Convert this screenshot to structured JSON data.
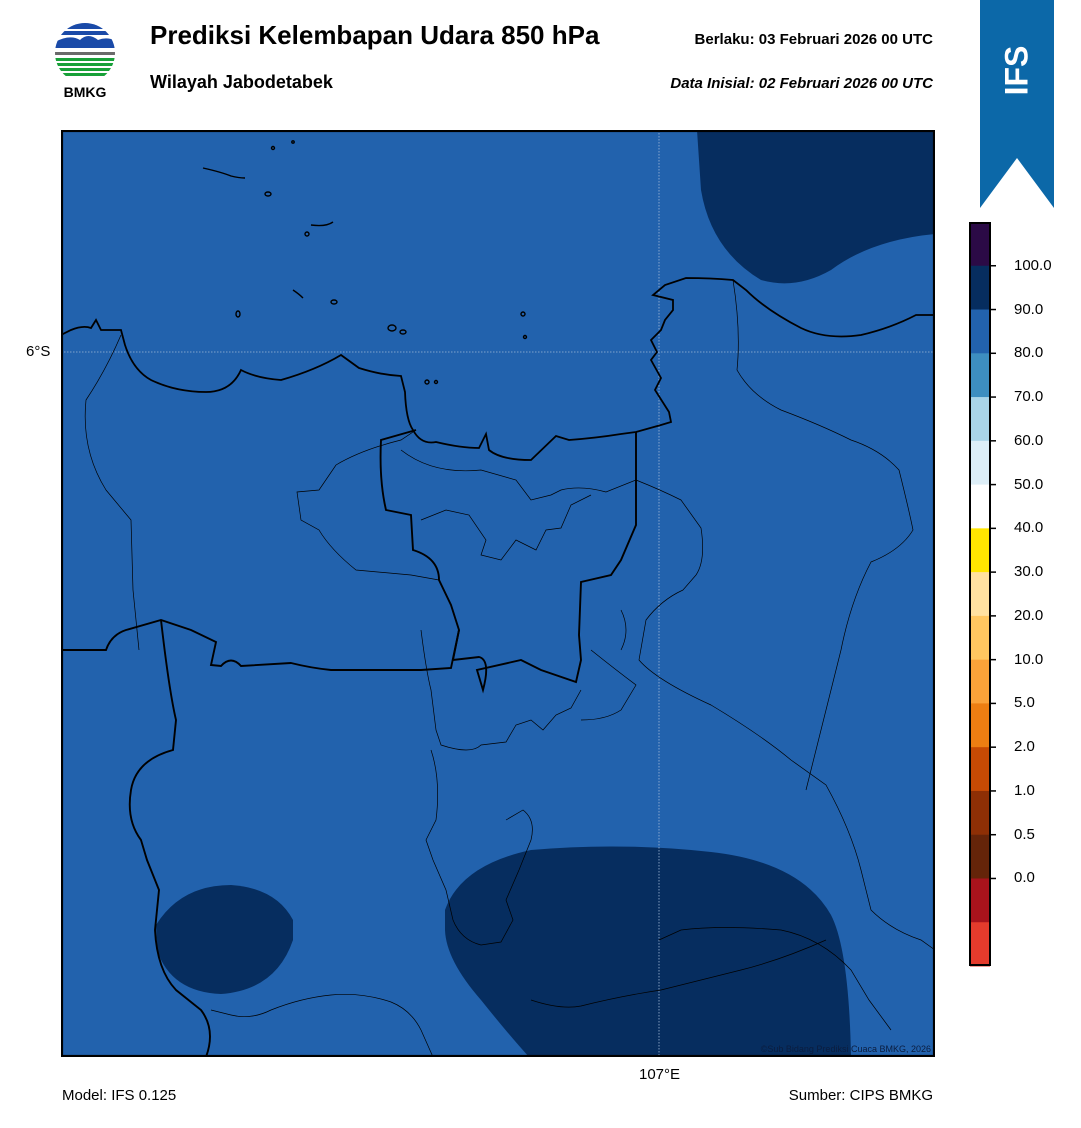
{
  "header": {
    "title": "Prediksi Kelembapan Udara 850 hPa",
    "subtitle": "Wilayah Jabodetabek",
    "valid": "Berlaku:  03 Februari 2026 00 UTC",
    "initial": "Data Inisial:  02 Februari 2026 00 UTC"
  },
  "logo": {
    "text": "BMKG"
  },
  "ribbon": {
    "text": "IFS",
    "color": "#0c68a8"
  },
  "map": {
    "lat_label": "6°S",
    "lon_label": "107°E",
    "credit": "©Sub Bidang Prediksi Cuaca BMKG, 2026",
    "background_color": "#2262ad",
    "high_humidity_color": "#062d5f"
  },
  "footer": {
    "model": "Model: IFS 0.125",
    "source": "Sumber: CIPS BMKG"
  },
  "colorbar": {
    "ticks": [
      "100.0",
      "90.0",
      "80.0",
      "70.0",
      "60.0",
      "50.0",
      "40.0",
      "30.0",
      "20.0",
      "10.0",
      "5.0",
      "2.0",
      "1.0",
      "0.5",
      "0.0"
    ],
    "colors": [
      "#2b0a46",
      "#062d5f",
      "#2262ad",
      "#3d8ec0",
      "#a9d4e8",
      "#ddeef7",
      "#ffffff",
      "#ffe600",
      "#ffe1a0",
      "#ffc760",
      "#fba239",
      "#ee7e12",
      "#c74a04",
      "#8e2f05",
      "#652409",
      "#a8131c",
      "#e53b2c"
    ]
  }
}
